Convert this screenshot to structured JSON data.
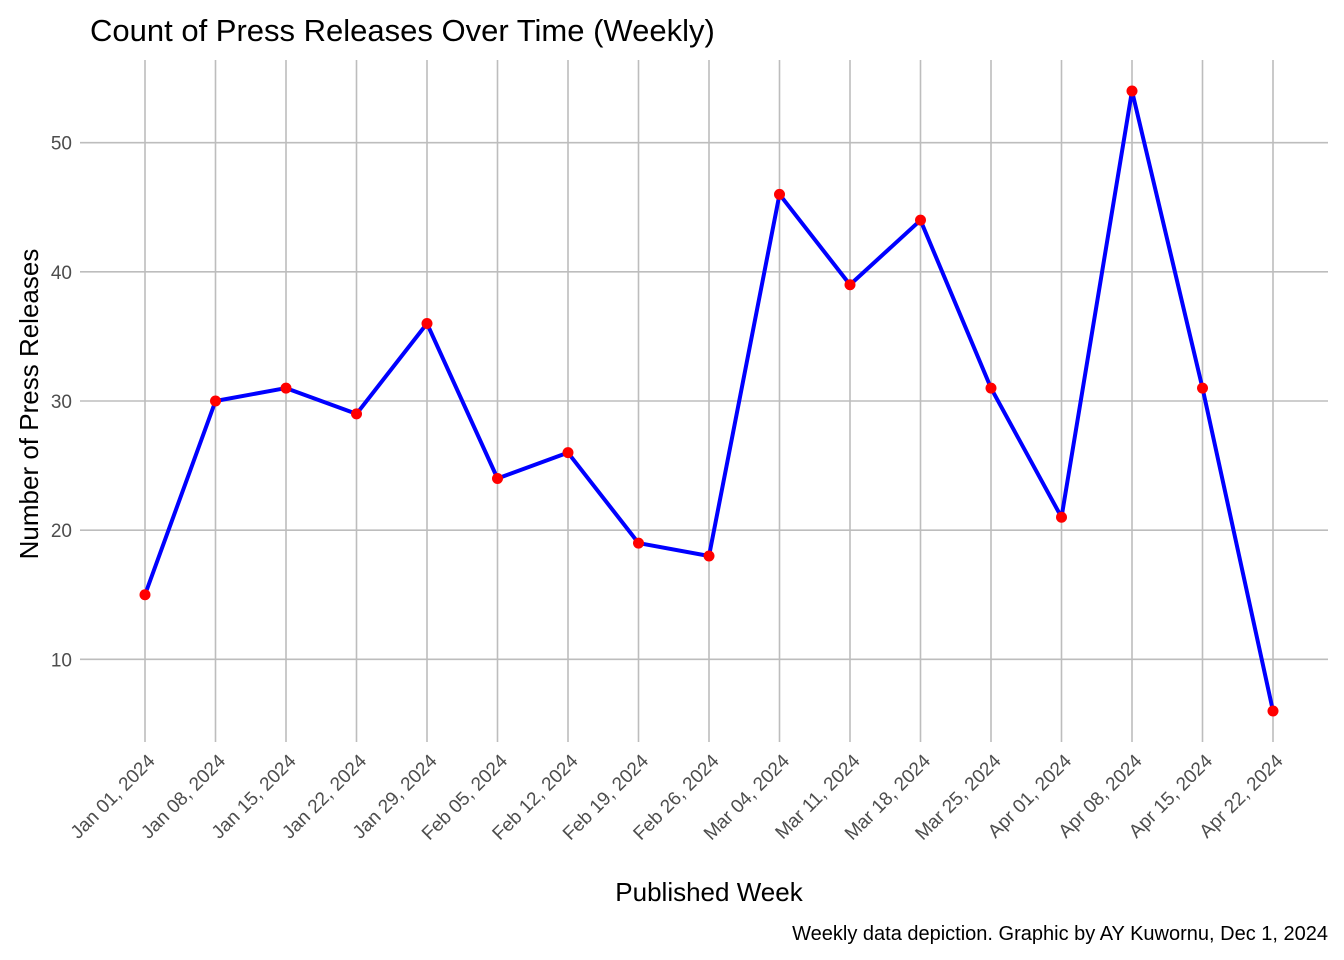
{
  "chart_data": {
    "type": "line",
    "title": "Count of Press Releases Over Time (Weekly)",
    "xlabel": "Published Week",
    "ylabel": "Number of Press Releases",
    "caption": "Weekly data depiction.  Graphic by AY Kuwornu, Dec 1, 2024",
    "categories": [
      "Jan 01, 2024",
      "Jan 08, 2024",
      "Jan 15, 2024",
      "Jan 22, 2024",
      "Jan 29, 2024",
      "Feb 05, 2024",
      "Feb 12, 2024",
      "Feb 19, 2024",
      "Feb 26, 2024",
      "Mar 04, 2024",
      "Mar 11, 2024",
      "Mar 18, 2024",
      "Mar 25, 2024",
      "Apr 01, 2024",
      "Apr 08, 2024",
      "Apr 15, 2024",
      "Apr 22, 2024"
    ],
    "values": [
      15,
      30,
      31,
      29,
      36,
      24,
      26,
      19,
      18,
      46,
      39,
      44,
      31,
      21,
      54,
      31,
      6
    ],
    "y_ticks": [
      10,
      20,
      30,
      40,
      50
    ],
    "ylim": [
      3.6,
      56.4
    ],
    "grid": true,
    "legend": "none",
    "line_color": "#0000ff",
    "point_color": "#ff0000"
  }
}
